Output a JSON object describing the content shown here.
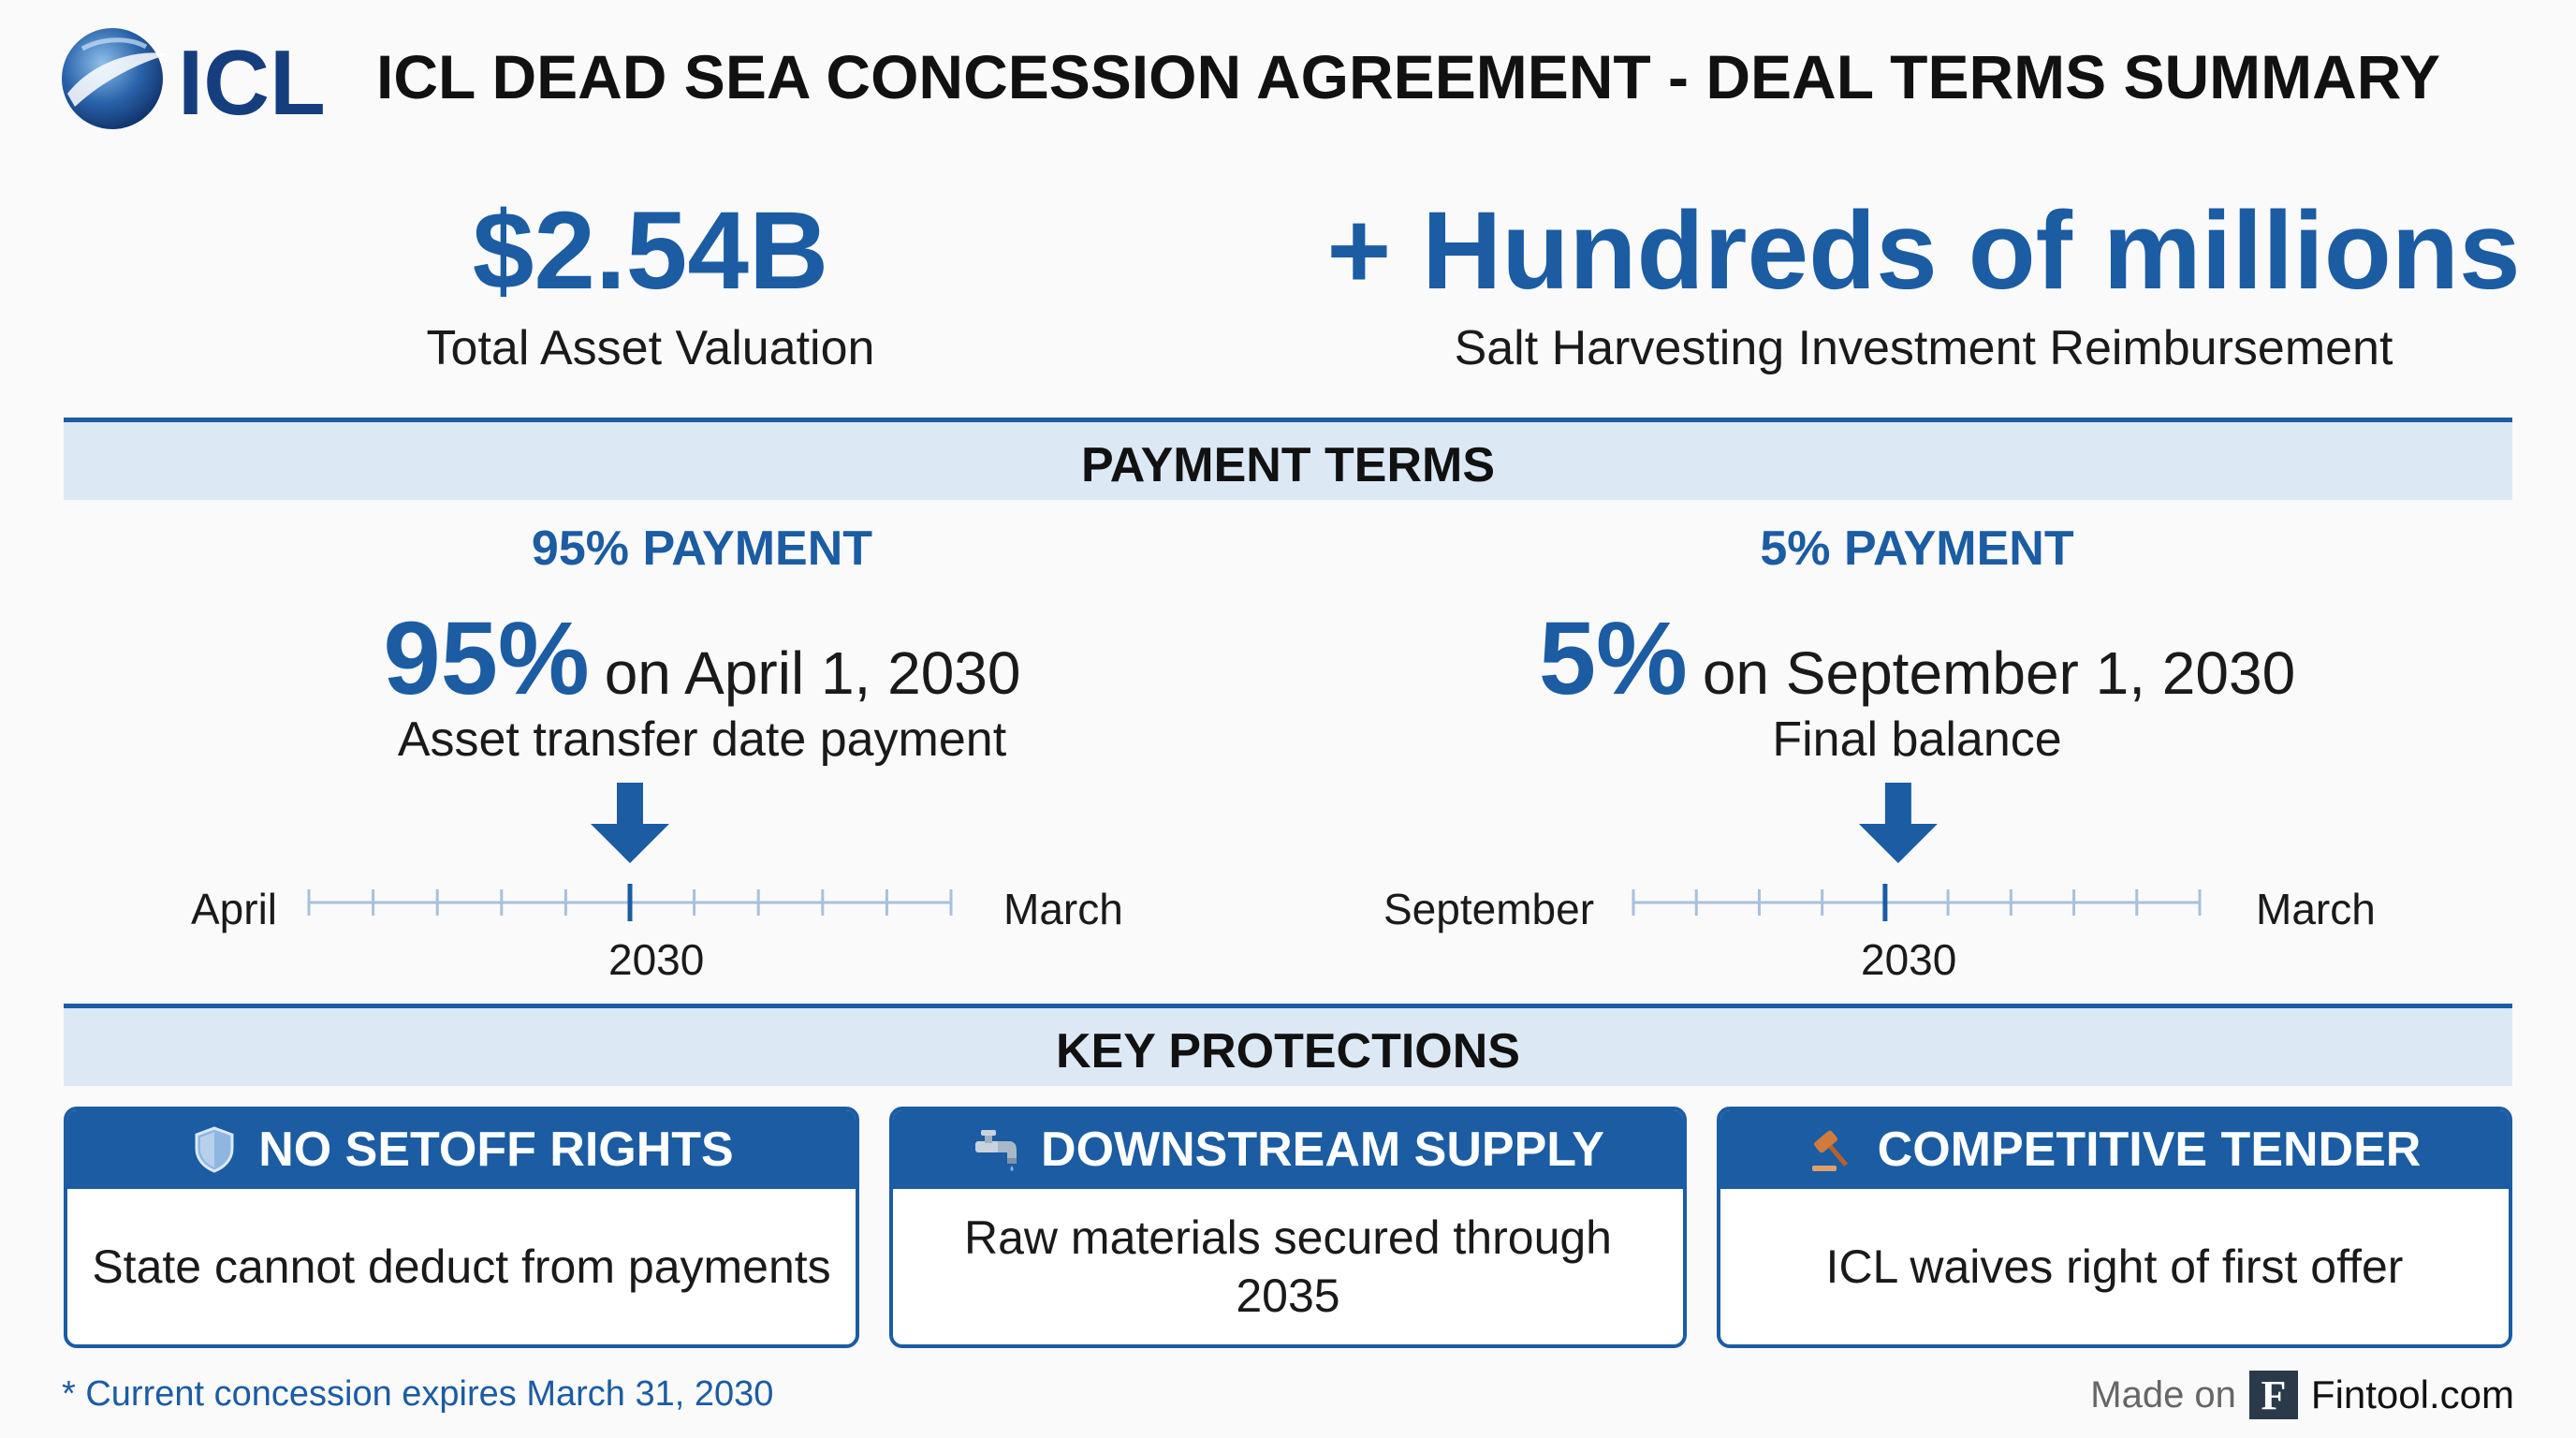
{
  "header": {
    "logo_text": "ICL",
    "title": "ICL DEAD SEA CONCESSION AGREEMENT - DEAL TERMS SUMMARY"
  },
  "metrics": {
    "left": {
      "value": "$2.54B",
      "label": "Total Asset Valuation"
    },
    "right": {
      "value": "+ Hundreds of millions",
      "label": "Salt Harvesting Investment Reimbursement"
    }
  },
  "payment_terms": {
    "section_title": "PAYMENT TERMS",
    "left": {
      "heading": "95% PAYMENT",
      "percent": "95%",
      "date_text": "on April 1, 2030",
      "description": "Asset transfer date payment",
      "timeline": {
        "start_label": "April",
        "end_label": "March",
        "marker_label": "2030",
        "ticks": 10,
        "marker_tick": 5
      }
    },
    "right": {
      "heading": "5% PAYMENT",
      "percent": "5%",
      "date_text": "on September 1, 2030",
      "description": "Final balance",
      "timeline": {
        "start_label": "September",
        "end_label": "March",
        "marker_label": "2030",
        "ticks": 9,
        "marker_tick": 4
      }
    }
  },
  "key_protections": {
    "section_title": "KEY PROTECTIONS",
    "cards": [
      {
        "icon": "shield-icon",
        "title": "NO SETOFF RIGHTS",
        "body": "State cannot deduct from payments"
      },
      {
        "icon": "faucet-icon",
        "title": "DOWNSTREAM SUPPLY",
        "body": "Raw materials secured through 2035"
      },
      {
        "icon": "gavel-icon",
        "title": "COMPETITIVE TENDER",
        "body": "ICL waives right of first offer"
      }
    ]
  },
  "footer": {
    "footnote": "* Current concession expires March 31, 2030",
    "made_on": "Made on",
    "brand_letter": "F",
    "site": "Fintool.com"
  },
  "colors": {
    "accent": "#1b5ca3",
    "band": "#dde8f5",
    "tick": "#a9c0dc"
  }
}
